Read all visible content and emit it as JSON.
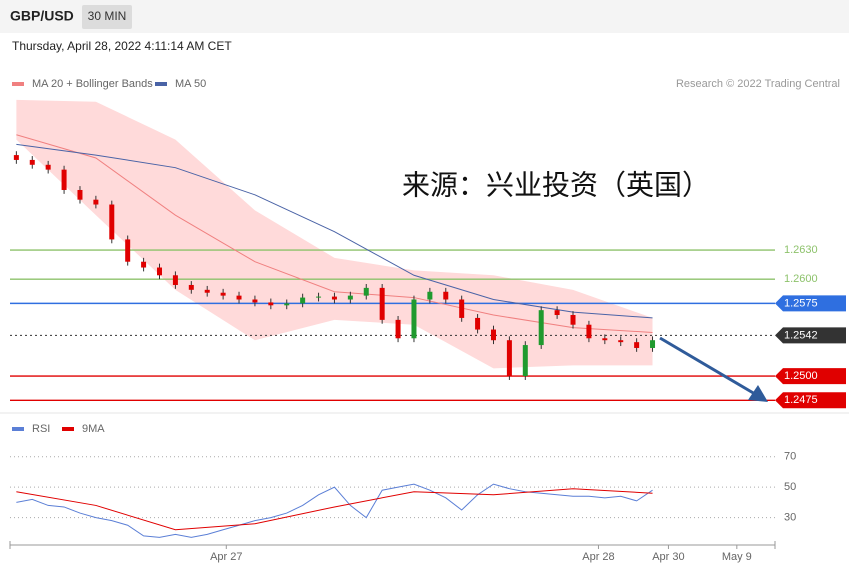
{
  "header": {
    "symbol": "GBP/USD",
    "interval": "30 MIN",
    "timestamp": "Thursday, April 28, 2022 4:11:14 AM CET"
  },
  "chart_data": [
    {
      "type": "candlestick",
      "annotation": "来源：兴业投资（英国）",
      "credit": "Research © 2022 Trading Central",
      "up_color": "#1f9a2e",
      "down_color": "#e00000",
      "xlim": [
        -0.4,
        47.7
      ],
      "ylim": [
        1.2465,
        1.279
      ],
      "xticks": [
        {
          "value": 13.2,
          "label": "Apr 27"
        },
        {
          "value": 36.6,
          "label": "Apr 28"
        },
        {
          "value": 41.0,
          "label": "Apr 30"
        },
        {
          "value": 45.3,
          "label": "May 9"
        }
      ],
      "open": [
        1.2728,
        1.2723,
        1.2718,
        1.2713,
        1.2692,
        1.2682,
        1.2677,
        1.2641,
        1.2618,
        1.2612,
        1.2604,
        1.2594,
        1.2589,
        1.2586,
        1.2583,
        1.2579,
        1.2576,
        1.2573,
        1.2575,
        1.2581,
        1.2582,
        1.2579,
        1.2583,
        1.2591,
        1.2558,
        1.2539,
        1.2579,
        1.2587,
        1.2579,
        1.256,
        1.2548,
        1.2537,
        1.25,
        1.2532,
        1.2568,
        1.2563,
        1.2553,
        1.2539,
        1.2537,
        1.2535,
        1.2529
      ],
      "high": [
        1.2732,
        1.2727,
        1.2722,
        1.2717,
        1.2696,
        1.2686,
        1.2681,
        1.2645,
        1.2622,
        1.2616,
        1.2608,
        1.2598,
        1.2593,
        1.259,
        1.2587,
        1.2583,
        1.258,
        1.2579,
        1.2585,
        1.2586,
        1.2586,
        1.2587,
        1.2595,
        1.2595,
        1.2562,
        1.2583,
        1.2591,
        1.2591,
        1.2583,
        1.2564,
        1.2552,
        1.2541,
        1.2536,
        1.2572,
        1.2572,
        1.2567,
        1.2557,
        1.2543,
        1.2541,
        1.2539,
        1.2541
      ],
      "low": [
        1.2719,
        1.2714,
        1.2709,
        1.2688,
        1.2678,
        1.2673,
        1.2637,
        1.2614,
        1.2608,
        1.26,
        1.259,
        1.2585,
        1.2582,
        1.2579,
        1.2575,
        1.2572,
        1.2569,
        1.2569,
        1.2571,
        1.2577,
        1.2575,
        1.2575,
        1.2579,
        1.2554,
        1.2535,
        1.2535,
        1.2575,
        1.2575,
        1.2556,
        1.2544,
        1.2533,
        1.2496,
        1.2496,
        1.2528,
        1.2559,
        1.2549,
        1.2535,
        1.2533,
        1.2531,
        1.2525,
        1.2525
      ],
      "close": [
        1.2723,
        1.2718,
        1.2713,
        1.2692,
        1.2682,
        1.2677,
        1.2641,
        1.2618,
        1.2612,
        1.2604,
        1.2594,
        1.2589,
        1.2586,
        1.2583,
        1.2579,
        1.2576,
        1.2573,
        1.2575,
        1.2581,
        1.2582,
        1.2579,
        1.2583,
        1.2591,
        1.2558,
        1.2539,
        1.2579,
        1.2587,
        1.2579,
        1.256,
        1.2548,
        1.2537,
        1.25,
        1.2532,
        1.2568,
        1.2563,
        1.2553,
        1.2539,
        1.2537,
        1.2535,
        1.2529,
        1.2537
      ],
      "series": [
        {
          "name": "MA 20 + Bollinger Bands",
          "color": "#f08080",
          "band_color": "#ffdada",
          "x": [
            0,
            5,
            10,
            15,
            20,
            25,
            30,
            35,
            40
          ],
          "values": [
            1.2749,
            1.2725,
            1.2666,
            1.2618,
            1.2587,
            1.2581,
            1.2563,
            1.255,
            1.2545
          ],
          "upper": [
            1.2785,
            1.2783,
            1.2744,
            1.2671,
            1.2622,
            1.2609,
            1.2604,
            1.2589,
            1.256
          ],
          "lower": [
            1.2744,
            1.2666,
            1.2589,
            1.2537,
            1.2558,
            1.2553,
            1.2508,
            1.2511,
            1.2511
          ]
        },
        {
          "name": "MA 50",
          "color": "#4a63a6",
          "x": [
            0,
            5,
            10,
            15,
            20,
            25,
            30,
            35,
            40
          ],
          "values": [
            1.2739,
            1.2728,
            1.2715,
            1.2687,
            1.2649,
            1.2604,
            1.2579,
            1.2566,
            1.256
          ]
        }
      ],
      "levels": [
        {
          "value": 1.263,
          "label": "1.2630",
          "color": "#8dc26b",
          "boxed": false,
          "dash": false
        },
        {
          "value": 1.26,
          "label": "1.2600",
          "color": "#8dc26b",
          "boxed": false,
          "dash": false
        },
        {
          "value": 1.2575,
          "label": "1.2575",
          "color": "#2f6fe0",
          "boxed": true,
          "dash": false
        },
        {
          "value": 1.2542,
          "label": "1.2542",
          "color": "#333333",
          "boxed": true,
          "dash": true
        },
        {
          "value": 1.25,
          "label": "1.2500",
          "color": "#e00000",
          "boxed": true,
          "dash": false
        },
        {
          "value": 1.2475,
          "label": "1.2475",
          "color": "#e00000",
          "boxed": true,
          "dash": false
        }
      ]
    },
    {
      "type": "line",
      "ylim": [
        12,
        81
      ],
      "yticks": [
        30,
        50,
        70
      ],
      "series": [
        {
          "name": "RSI",
          "color": "#5b7fd6",
          "x": [
            0,
            1,
            2,
            3,
            4,
            5,
            6,
            7,
            8,
            9,
            10,
            11,
            12,
            13,
            14,
            15,
            16,
            17,
            18,
            19,
            20,
            21,
            22,
            23,
            24,
            25,
            26,
            27,
            28,
            29,
            30,
            31,
            32,
            33,
            34,
            35,
            36,
            37,
            38,
            39,
            40
          ],
          "values": [
            40,
            42,
            38,
            37,
            33,
            30,
            28,
            25,
            18,
            17,
            19,
            17,
            19,
            22,
            25,
            28,
            30,
            33,
            38,
            45,
            50,
            38,
            30,
            48,
            50,
            52,
            48,
            43,
            35,
            45,
            52,
            49,
            47,
            46,
            45,
            44,
            44,
            43,
            44,
            41,
            48
          ]
        },
        {
          "name": "9MA",
          "color": "#e00000",
          "x": [
            0,
            5,
            10,
            15,
            20,
            25,
            30,
            35,
            40
          ],
          "values": [
            47,
            38,
            22,
            26,
            37,
            47,
            45,
            49,
            46
          ]
        }
      ]
    }
  ]
}
